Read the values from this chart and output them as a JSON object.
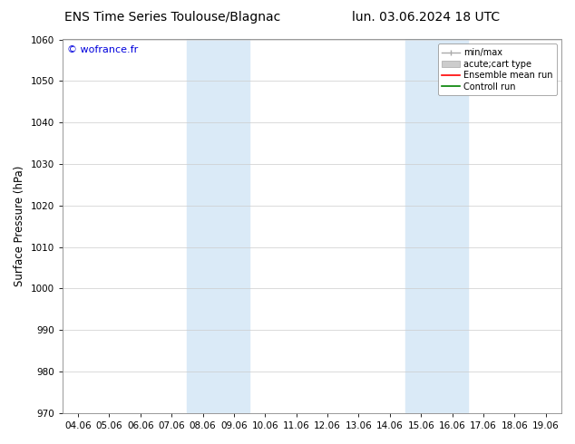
{
  "title_left": "ENS Time Series Toulouse/Blagnac",
  "title_right": "lun. 03.06.2024 18 UTC",
  "ylabel": "Surface Pressure (hPa)",
  "xlabel": "",
  "ylim": [
    970,
    1060
  ],
  "yticks": [
    970,
    980,
    990,
    1000,
    1010,
    1020,
    1030,
    1040,
    1050,
    1060
  ],
  "xtick_labels": [
    "04.06",
    "05.06",
    "06.06",
    "07.06",
    "08.06",
    "09.06",
    "10.06",
    "11.06",
    "12.06",
    "13.06",
    "14.06",
    "15.06",
    "16.06",
    "17.06",
    "18.06",
    "19.06"
  ],
  "bg_color": "#ffffff",
  "plot_bg_color": "#ffffff",
  "shaded_regions": [
    {
      "xstart": 4,
      "xend": 6,
      "color": "#daeaf7"
    },
    {
      "xstart": 11,
      "xend": 13,
      "color": "#daeaf7"
    }
  ],
  "watermark_text": "© wofrance.fr",
  "watermark_color": "#0000dd",
  "grid_color": "#cccccc",
  "spine_color": "#888888",
  "title_fontsize": 10,
  "tick_fontsize": 7.5,
  "ylabel_fontsize": 8.5,
  "legend_fontsize": 7,
  "watermark_fontsize": 8
}
